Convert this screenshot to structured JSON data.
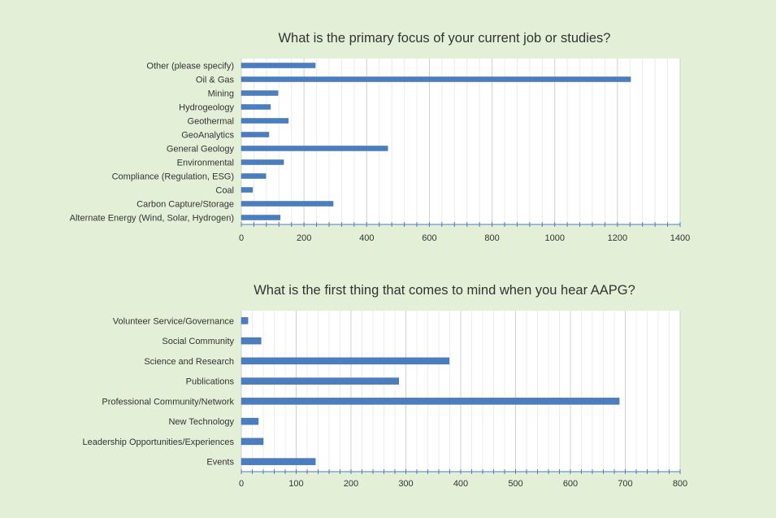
{
  "chart_data": [
    {
      "type": "bar",
      "orientation": "horizontal",
      "title": "What is the primary focus of your current job or studies?",
      "categories": [
        "Other (please specify)",
        "Oil & Gas",
        "Mining",
        "Hydrogeology",
        "Geothermal",
        "GeoAnalytics",
        "General Geology",
        "Environmental",
        "Compliance (Regulation, ESG)",
        "Coal",
        "Carbon Capture/Storage",
        "Alternate Energy (Wind, Solar, Hydrogen)"
      ],
      "values": [
        236,
        1242,
        117,
        93,
        150,
        88,
        467,
        135,
        78,
        36,
        293,
        124
      ],
      "xlim": [
        0,
        1400
      ],
      "xticks": [
        0,
        200,
        400,
        600,
        800,
        1000,
        1200,
        1400
      ],
      "minor_step": 40,
      "grid": true,
      "bar_color": "#4a7ebf"
    },
    {
      "type": "bar",
      "orientation": "horizontal",
      "title": "What is the first thing that comes to mind when you hear AAPG?",
      "categories": [
        "Volunteer Service/Governance",
        "Social Community",
        "Science and Research",
        "Publications",
        "Professional Community/Network",
        "New Technology",
        "Leadership Opportunities/Experiences",
        "Events"
      ],
      "values": [
        12,
        36,
        379,
        287,
        689,
        31,
        40,
        135
      ],
      "xlim": [
        0,
        800
      ],
      "xticks": [
        0,
        100,
        200,
        300,
        400,
        500,
        600,
        700,
        800
      ],
      "minor_step": 20,
      "grid": true,
      "bar_color": "#4a7ebf"
    }
  ]
}
